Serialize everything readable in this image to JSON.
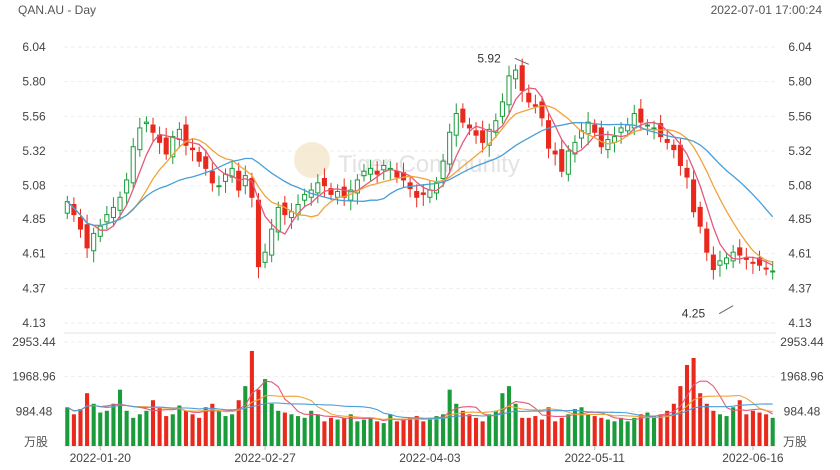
{
  "header": {
    "title": "QAN.AU - Day",
    "timestamp": "2022-07-01 17:00:24"
  },
  "watermark": {
    "text": "Tiger Community"
  },
  "chart_data": {
    "type": "candlestick",
    "price_axis": {
      "ylim": [
        4.13,
        6.04
      ],
      "ticks": [
        "6.04",
        "5.80",
        "5.56",
        "5.32",
        "5.08",
        "4.85",
        "4.61",
        "4.37",
        "4.13"
      ]
    },
    "volume_axis": {
      "unit": "万股",
      "ylim": [
        0,
        2953.44
      ],
      "ticks": [
        "2953.44",
        "1968.96",
        "984.48"
      ]
    },
    "x_labels": [
      {
        "index": 5,
        "label": "2022-01-20"
      },
      {
        "index": 30,
        "label": "2022-02-27"
      },
      {
        "index": 55,
        "label": "2022-04-03"
      },
      {
        "index": 80,
        "label": "2022-05-11"
      },
      {
        "index": 104,
        "label": "2022-06-16"
      }
    ],
    "annotations": [
      {
        "index": 70,
        "price": 5.92,
        "text": "5.92"
      },
      {
        "index": 101,
        "price": 4.25,
        "text": "4.25"
      }
    ],
    "colors": {
      "up": "#1a9c3a",
      "down": "#e8291c",
      "ma_fast": "#e35a7a",
      "ma_mid": "#f0a33b",
      "ma_slow": "#4a9fd8"
    },
    "closes": [
      4.97,
      4.88,
      4.78,
      4.65,
      4.75,
      4.8,
      4.88,
      4.93,
      5.0,
      5.12,
      5.35,
      5.48,
      5.52,
      5.45,
      5.38,
      5.3,
      5.42,
      5.47,
      5.36,
      5.33,
      5.25,
      5.2,
      5.1,
      5.08,
      5.16,
      5.2,
      5.05,
      5.15,
      5.0,
      4.52,
      4.62,
      4.78,
      4.93,
      4.88,
      4.9,
      4.95,
      5.02,
      5.05,
      5.1,
      5.08,
      5.02,
      5.04,
      5.0,
      5.05,
      5.12,
      5.18,
      5.2,
      5.16,
      5.22,
      5.2,
      5.14,
      5.12,
      5.06,
      5.0,
      5.02,
      5.05,
      5.1,
      5.25,
      5.45,
      5.58,
      5.52,
      5.48,
      5.43,
      5.38,
      5.47,
      5.53,
      5.66,
      5.84,
      5.88,
      5.74,
      5.66,
      5.63,
      5.55,
      5.34,
      5.3,
      5.18,
      5.32,
      5.38,
      5.46,
      5.52,
      5.45,
      5.35,
      5.4,
      5.42,
      5.48,
      5.5,
      5.58,
      5.52,
      5.5,
      5.48,
      5.42,
      5.38,
      5.33,
      5.22,
      5.14,
      4.9,
      4.8,
      4.62,
      4.5,
      4.56,
      4.58,
      4.62,
      4.6,
      4.57,
      4.55,
      4.53,
      4.51,
      4.49
    ],
    "volumes": [
      1100,
      900,
      1050,
      1500,
      1200,
      950,
      1000,
      1200,
      1600,
      1000,
      800,
      900,
      1000,
      1300,
      1100,
      850,
      900,
      1150,
      1000,
      900,
      800,
      1100,
      1200,
      1000,
      850,
      900,
      1300,
      1700,
      2700,
      1600,
      1900,
      1200,
      1000,
      950,
      900,
      850,
      800,
      1000,
      900,
      700,
      800,
      750,
      800,
      900,
      700,
      750,
      800,
      700,
      650,
      900,
      700,
      750,
      800,
      850,
      700,
      800,
      850,
      900,
      1600,
      1200,
      1000,
      900,
      800,
      700,
      900,
      1000,
      1500,
      1700,
      1200,
      800,
      800,
      850,
      750,
      1100,
      700,
      800,
      900,
      1050,
      1100,
      900,
      850,
      800,
      750,
      700,
      800,
      700,
      800,
      900,
      950,
      850,
      900,
      1000,
      1200,
      1700,
      2300,
      2500,
      1500,
      1200,
      1000,
      900,
      850,
      1100,
      1300,
      900,
      1000,
      950,
      900,
      800
    ]
  },
  "footer_tags": {
    "volume_unit_left": "万股",
    "volume_unit_right": "万股"
  }
}
